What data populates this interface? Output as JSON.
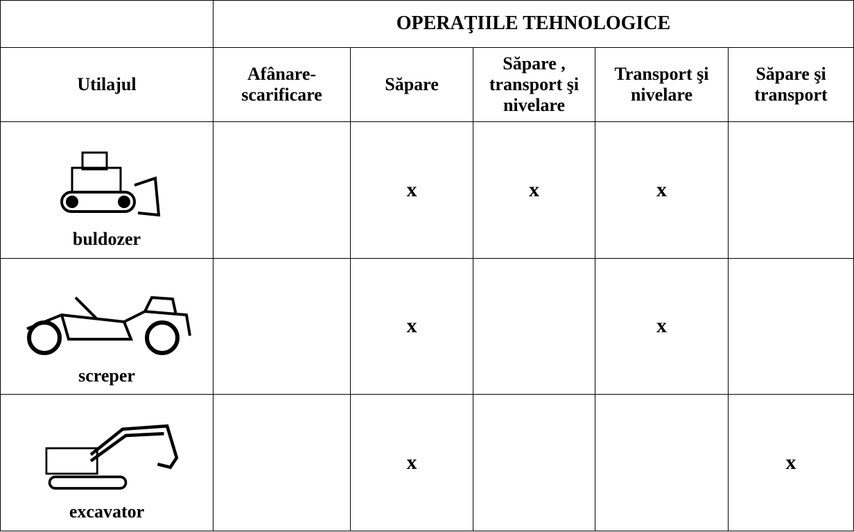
{
  "table": {
    "title": "OPERAŢIILE TEHNOLOGICE",
    "header": [
      "Utilajul",
      "Afânare-scarificare",
      "Săpare",
      "Săpare , transport şi nivelare",
      "Transport şi nivelare",
      "Săpare şi transport"
    ],
    "rows": [
      {
        "name": "buldozer",
        "cells": [
          null,
          "x",
          "x",
          "x",
          null
        ]
      },
      {
        "name": "screper",
        "cells": [
          null,
          "x",
          null,
          "x",
          null
        ]
      },
      {
        "name": "excavator",
        "cells": [
          null,
          "x",
          null,
          null,
          "x"
        ]
      }
    ]
  }
}
